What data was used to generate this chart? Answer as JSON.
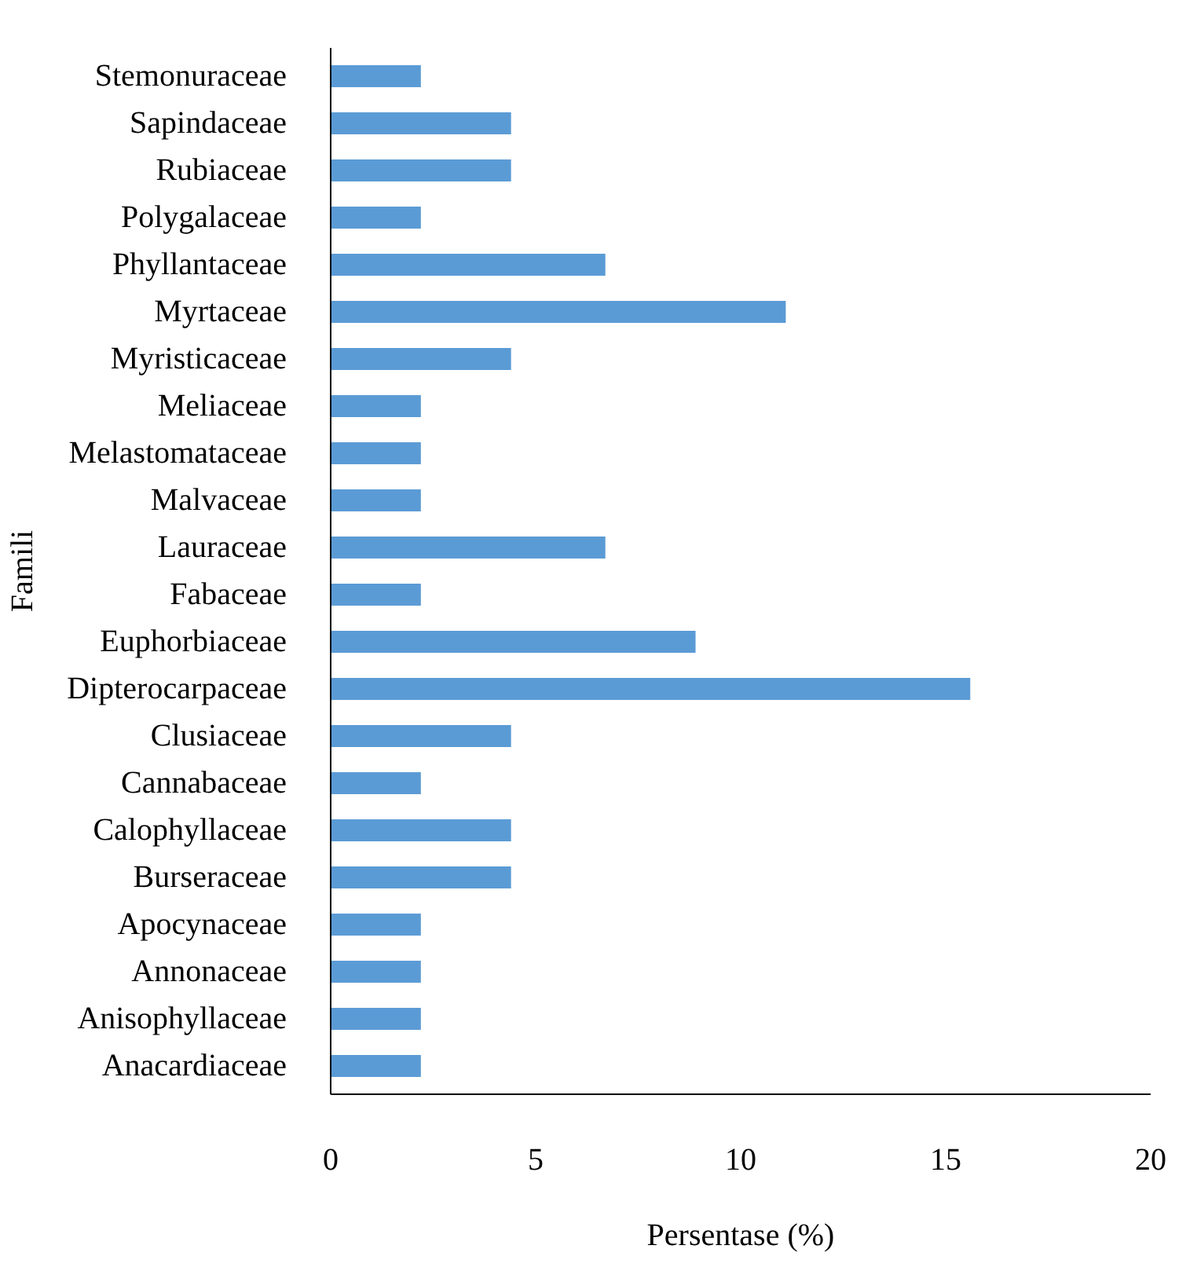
{
  "chart_data": {
    "type": "bar",
    "orientation": "horizontal",
    "xlabel": "Persentase (%)",
    "ylabel": "Famili",
    "categories": [
      "Stemonuraceae",
      "Sapindaceae",
      "Rubiaceae",
      "Polygalaceae",
      "Phyllantaceae",
      "Myrtaceae",
      "Myristicaceae",
      "Meliaceae",
      "Melastomataceae",
      "Malvaceae",
      "Lauraceae",
      "Fabaceae",
      "Euphorbiaceae",
      "Dipterocarpaceae",
      "Clusiaceae",
      "Cannabaceae",
      "Calophyllaceae",
      "Burseraceae",
      "Apocynaceae",
      "Annonaceae",
      "Anisophyllaceae",
      "Anacardiaceae"
    ],
    "values": [
      2.2,
      4.4,
      4.4,
      2.2,
      6.7,
      11.1,
      4.4,
      2.2,
      2.2,
      2.2,
      6.7,
      2.2,
      8.9,
      15.6,
      4.4,
      2.2,
      4.4,
      4.4,
      2.2,
      2.2,
      2.2,
      2.2
    ],
    "color": "#5b9bd5",
    "xlim": [
      0,
      20
    ],
    "xticks": [
      0,
      5,
      10,
      15,
      20
    ],
    "grid": false
  }
}
